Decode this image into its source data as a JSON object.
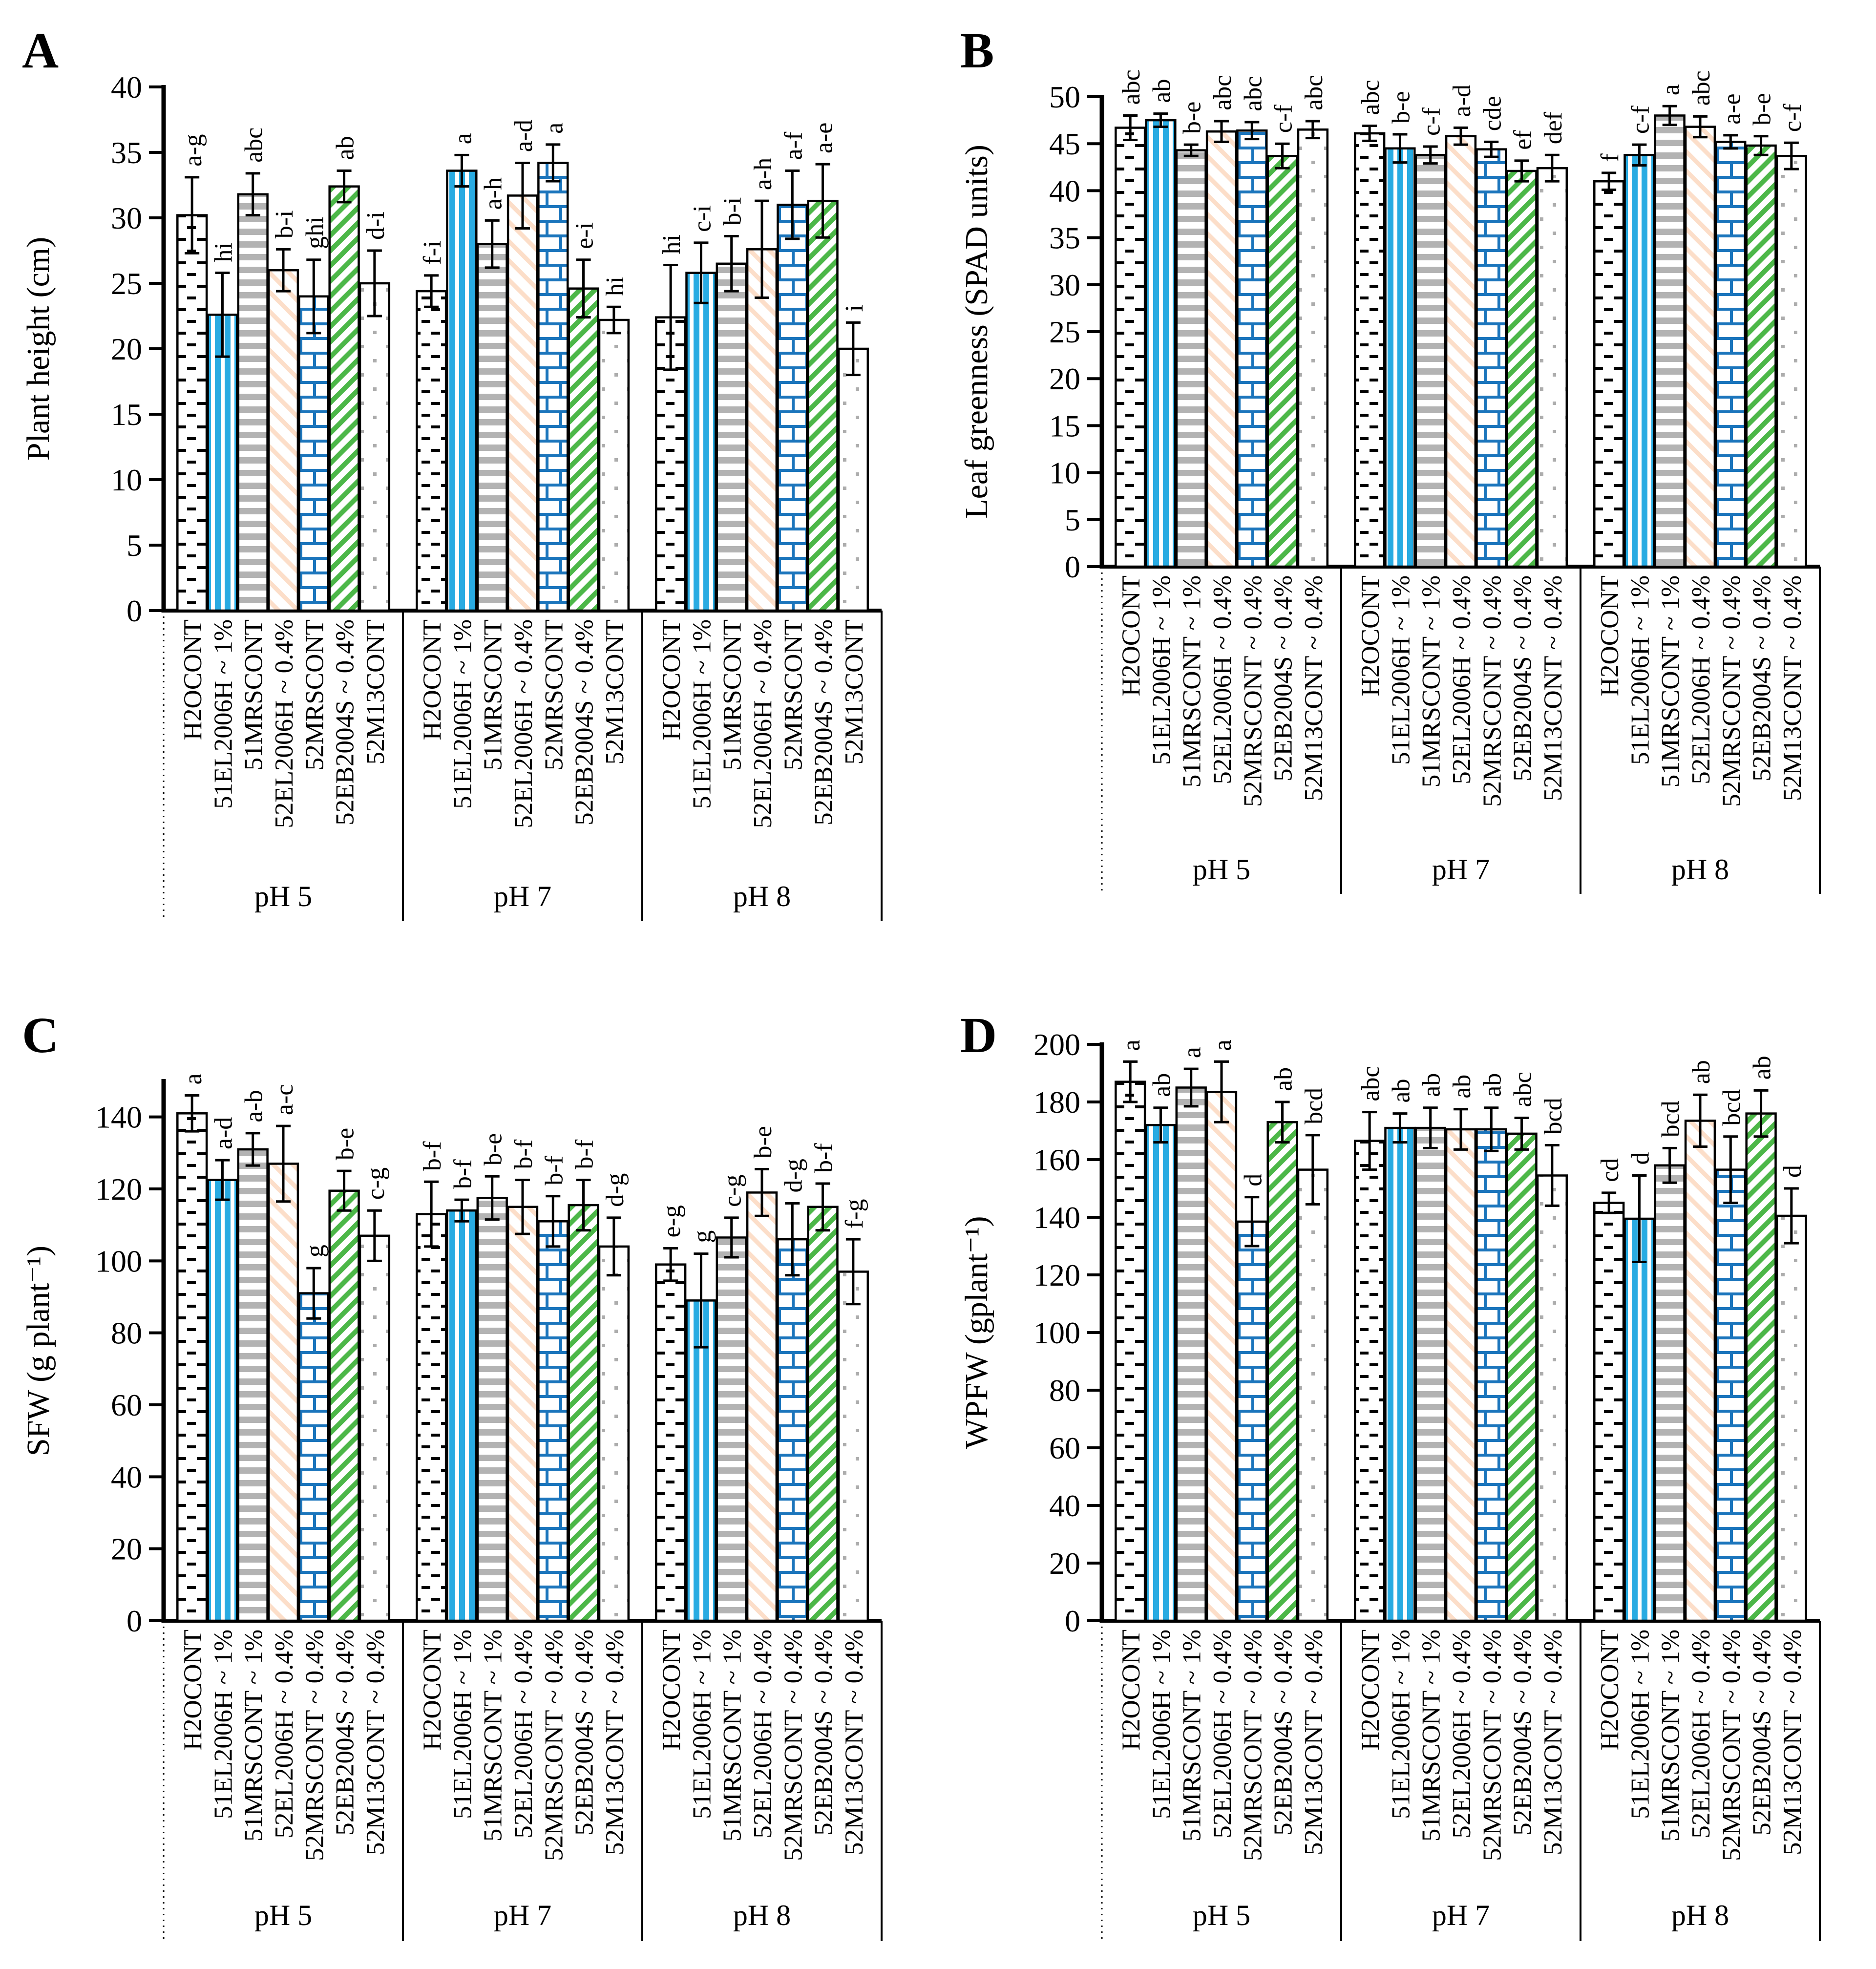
{
  "figure": {
    "background": "#ffffff",
    "panel_letters": [
      "A",
      "B",
      "C",
      "D"
    ]
  },
  "treatments": [
    {
      "key": "H2OCONT",
      "pattern": "black-dashes",
      "color": "#000000"
    },
    {
      "key": "51EL2006H",
      "pattern": "vertical-stripes",
      "color": "#29abe2"
    },
    {
      "key": "51MRSCONT",
      "pattern": "horizontal-stripes",
      "color": "#b3b3b3"
    },
    {
      "key": "52EL2006H",
      "pattern": "diagonal-stripes-down",
      "color": "#fcdec9"
    },
    {
      "key": "52MRSCONT",
      "pattern": "brick",
      "color": "#1b75bc"
    },
    {
      "key": "52EB2004S",
      "pattern": "diagonal-stripes-up",
      "color": "#4cb748"
    },
    {
      "key": "52M13CONT",
      "pattern": "dots",
      "color": "#adadad"
    }
  ],
  "chart_data": [
    {
      "panel": "A",
      "type": "bar",
      "ylabel": "Plant height (cm)",
      "ylim": [
        0,
        40
      ],
      "ytick_step": 5,
      "ytick_max": 40,
      "grid": false,
      "groups": [
        "pH 5",
        "pH 7",
        "pH 8"
      ],
      "categories": [
        "H2OCONT",
        "51EL2006H ~ 1%",
        "51MRSCONT",
        "52EL2006H ~ 0.4%",
        "52MRSCONT",
        "52EB2004S ~ 0.4%",
        "52M13CONT"
      ],
      "values": [
        [
          30.2,
          22.6,
          31.8,
          26.0,
          24.0,
          32.4,
          25.0
        ],
        [
          24.4,
          33.6,
          28.0,
          31.7,
          34.2,
          24.6,
          22.2
        ],
        [
          22.4,
          25.8,
          26.5,
          27.6,
          31.0,
          31.3,
          20.0
        ]
      ],
      "errors": [
        [
          2.9,
          3.2,
          1.6,
          1.6,
          2.8,
          1.2,
          2.5
        ],
        [
          1.2,
          1.2,
          1.8,
          2.5,
          1.4,
          2.2,
          1.0
        ],
        [
          4.0,
          2.3,
          2.1,
          3.7,
          2.6,
          2.8,
          2.0
        ]
      ],
      "letters": [
        [
          "a-g",
          "hi",
          "abc",
          "b-i",
          "ghi",
          "ab",
          "d-i"
        ],
        [
          "f-i",
          "a",
          "a-h",
          "a-d",
          "a",
          "e-i",
          "hi"
        ],
        [
          "hi",
          "c-i",
          "b-i",
          "a-h",
          "a-f",
          "a-e",
          "i"
        ]
      ]
    },
    {
      "panel": "B",
      "type": "bar",
      "ylabel": "Leaf greenness (SPAD units)",
      "ylim": [
        0,
        50
      ],
      "ytick_step": 5,
      "ytick_max": 50,
      "grid": false,
      "groups": [
        "pH 5",
        "pH 7",
        "pH 8"
      ],
      "categories": [
        "H2OCONT",
        "51EL2006H ~ 1%",
        "51MRSCONT ~ 1%",
        "52EL2006H ~ 0.4%",
        "52MRSCONT ~ 0.4%",
        "52EB2004S ~ 0.4%",
        "52M13CONT ~ 0.4%"
      ],
      "values": [
        [
          46.7,
          47.5,
          44.3,
          46.3,
          46.4,
          43.7,
          46.5
        ],
        [
          46.1,
          44.5,
          43.8,
          45.8,
          44.4,
          42.1,
          42.4
        ],
        [
          41.0,
          43.8,
          48.0,
          46.8,
          45.2,
          44.8,
          43.7
        ]
      ],
      "errors": [
        [
          1.3,
          0.7,
          0.6,
          1.1,
          0.9,
          1.3,
          0.9
        ],
        [
          0.8,
          1.5,
          0.9,
          0.9,
          0.8,
          1.1,
          1.4
        ],
        [
          0.9,
          1.1,
          1.0,
          1.1,
          0.7,
          1.0,
          1.4
        ]
      ],
      "letters": [
        [
          "abc",
          "ab",
          "b-e",
          "abc",
          "abc",
          "c-f",
          "abc"
        ],
        [
          "abc",
          "b-e",
          "c-f",
          "a-d",
          "cde",
          "ef",
          "def"
        ],
        [
          "f",
          "c-f",
          "a",
          "abc",
          "a-e",
          "b-e",
          "c-f"
        ]
      ]
    },
    {
      "panel": "C",
      "type": "bar",
      "ylabel": "SFW  (g plant⁻¹)",
      "ylim": [
        0,
        150
      ],
      "ytick_step": 20,
      "ytick_max": 140,
      "grid": false,
      "groups": [
        "pH 5",
        "pH 7",
        "pH 8"
      ],
      "categories": [
        "H2OCONT",
        "51EL2006H ~ 1%",
        "51MRSCONT ~ 1%",
        "52EL2006H ~ 0.4%",
        "52MRSCONT ~ 0.4%",
        "52EB2004S ~ 0.4%",
        "52M13CONT ~ 0.4%"
      ],
      "values": [
        [
          141.0,
          122.5,
          131.0,
          127.0,
          91.0,
          119.5,
          107.0
        ],
        [
          113.0,
          114.0,
          117.5,
          115.0,
          111.0,
          115.5,
          104.0
        ],
        [
          99.0,
          89.0,
          106.5,
          119.0,
          106.0,
          115.0,
          97.0
        ]
      ],
      "errors": [
        [
          5.0,
          5.5,
          4.5,
          10.5,
          7.0,
          5.5,
          7.0
        ],
        [
          9.0,
          3.0,
          6.0,
          7.5,
          7.0,
          7.0,
          8.0
        ],
        [
          4.5,
          13.0,
          5.5,
          6.5,
          10.0,
          6.5,
          9.0
        ]
      ],
      "letters": [
        [
          "a",
          "a-d",
          "a-b",
          "a-c",
          "g",
          "b-e",
          "c-g"
        ],
        [
          "b-f",
          "b-f",
          "b-e",
          "b-f",
          "b-f",
          "b-f",
          "d-g"
        ],
        [
          "e-g",
          "g",
          "c-g",
          "b-e",
          "d-g",
          "b-f",
          "f-g"
        ]
      ]
    },
    {
      "panel": "D",
      "type": "bar",
      "ylabel": "WPFW (gplant⁻¹)",
      "ylim": [
        0,
        200
      ],
      "ytick_step": 20,
      "ytick_max": 200,
      "grid": false,
      "groups": [
        "pH 5",
        "pH 7",
        "pH 8"
      ],
      "categories": [
        "H2OCONT",
        "51EL2006H ~ 1%",
        "51MRSCONT ~ 1%",
        "52EL2006H ~ 0.4%",
        "52MRSCONT ~ 0.4%",
        "52EB2004S ~ 0.4%",
        "52M13CONT ~ 0.4%"
      ],
      "values": [
        [
          187.0,
          172.0,
          185.0,
          183.5,
          138.5,
          173.0,
          156.5
        ],
        [
          166.5,
          171.0,
          171.0,
          170.5,
          170.5,
          169.0,
          154.5
        ],
        [
          145.0,
          139.5,
          158.0,
          173.5,
          156.5,
          176.0,
          140.5
        ]
      ],
      "errors": [
        [
          7.0,
          6.0,
          6.5,
          10.5,
          8.5,
          7.0,
          12.0
        ],
        [
          10.0,
          5.0,
          7.0,
          7.0,
          7.5,
          5.5,
          10.5
        ],
        [
          3.5,
          15.0,
          6.0,
          9.0,
          11.5,
          8.0,
          9.5
        ]
      ],
      "letters": [
        [
          "a",
          "ab",
          "a",
          "a",
          "d",
          "ab",
          "bcd"
        ],
        [
          "abc",
          "ab",
          "ab",
          "ab",
          "ab",
          "abc",
          "bcd"
        ],
        [
          "cd",
          "d",
          "bcd",
          "ab",
          "bcd",
          "ab",
          "d"
        ]
      ]
    }
  ]
}
